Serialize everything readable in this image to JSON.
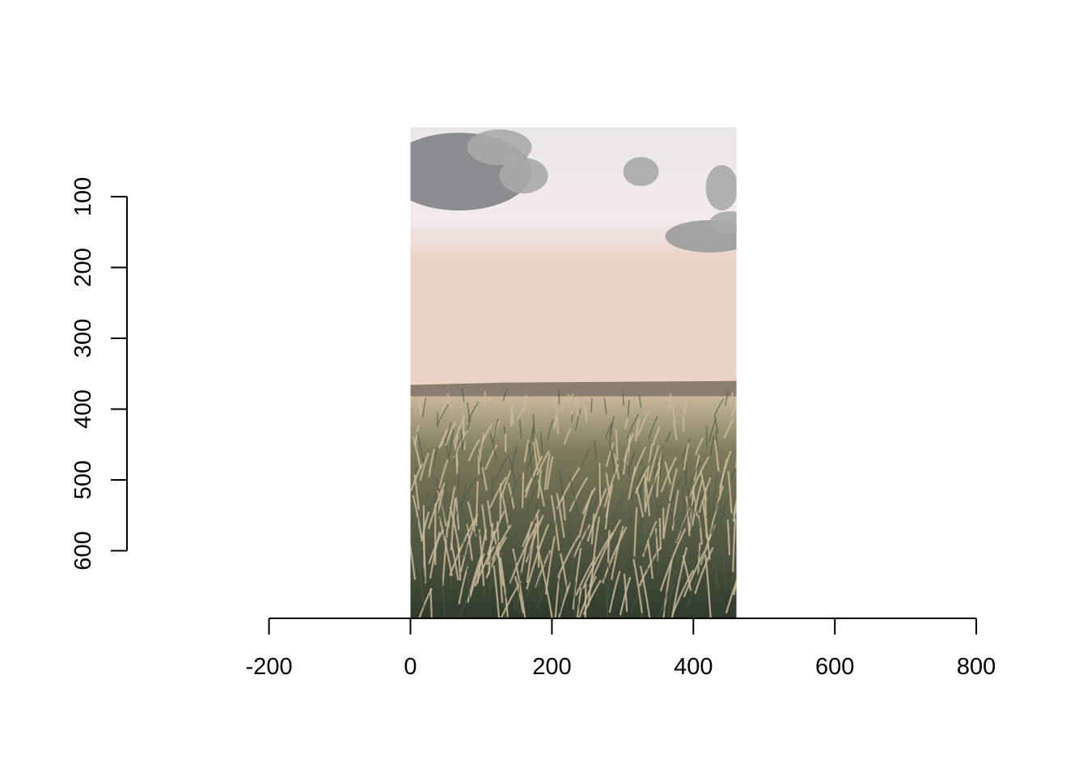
{
  "chart_data": {
    "type": "image",
    "title": "",
    "xlabel": "",
    "ylabel": "",
    "x_ticks": [
      -200,
      0,
      200,
      400,
      600,
      800
    ],
    "y_ticks": [
      100,
      200,
      300,
      400,
      500,
      600
    ],
    "x_tick_labels": [
      "-200",
      "0",
      "200",
      "400",
      "600",
      "800"
    ],
    "y_tick_labels": [
      "100",
      "200",
      "300",
      "400",
      "500",
      "600"
    ],
    "xlim": [
      -200,
      800
    ],
    "ylim": [
      600,
      100
    ],
    "y_reversed": true,
    "grid": false,
    "raster_image": {
      "x_range": [
        0,
        461
      ],
      "y_range": [
        1,
        693
      ],
      "subject": "wheat-field-landscape",
      "colors": {
        "sky_top": "#e9e6ea",
        "sky_mid": "#f3e9ee",
        "horizon_glow": "#ead2c4",
        "hill": "#8a7c6f",
        "grass_light": "#c9b79a",
        "grass_dark": "#2f3b2c",
        "cloud_dark": "#7f8285",
        "cloud_light": "#a9a9aa"
      }
    }
  }
}
